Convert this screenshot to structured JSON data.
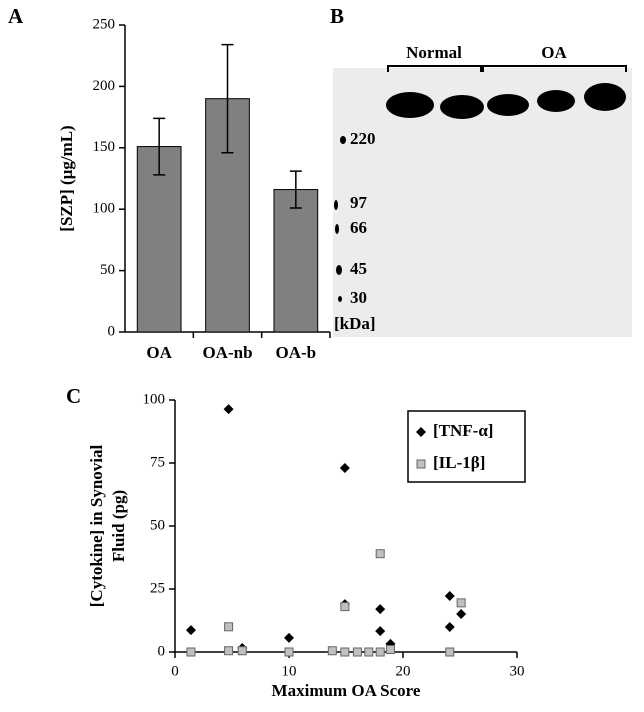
{
  "chart_data": [
    {
      "type": "bar",
      "label": "A",
      "y_label": "[SZP] (μg/mL)",
      "categories": [
        "OA",
        "OA-nb",
        "OA-b"
      ],
      "values": [
        151,
        190,
        116
      ],
      "errors": [
        23,
        44,
        15
      ],
      "color": "#808080",
      "ylim": [
        0,
        250
      ],
      "yticks": [
        0,
        50,
        100,
        150,
        200,
        250
      ]
    },
    {
      "type": "scatter",
      "label": "C",
      "x_label": "Maximum OA Score",
      "y_label": [
        "[Cytokine] in Synovial",
        "Fluid (pg)"
      ],
      "xlim": [
        0,
        30
      ],
      "xticks": [
        0,
        10,
        20,
        30
      ],
      "ylim": [
        0,
        100
      ],
      "yticks": [
        0,
        25,
        50,
        75,
        100
      ],
      "legend": "top-right",
      "series": [
        {
          "name": "[TNF-α]",
          "marker": "diamond",
          "color": "#000000",
          "x": [
            1.4,
            4.7,
            5.9,
            10,
            14.9,
            14.9,
            18,
            18,
            18.9,
            24.1,
            24.1,
            25.1
          ],
          "values": [
            8.7,
            96.4,
            1.6,
            5.6,
            73,
            19,
            17,
            8.3,
            3.2,
            22.2,
            9.9,
            15.1
          ]
        },
        {
          "name": "[IL-1β]",
          "marker": "square",
          "color": "#c0c0c0",
          "x": [
            1.4,
            4.7,
            4.7,
            5.9,
            10,
            13.8,
            14.9,
            14.9,
            16,
            17,
            18,
            18,
            18.9,
            24.1,
            25.1
          ],
          "values": [
            0,
            10,
            0.5,
            0.5,
            0,
            0.5,
            18,
            0,
            0,
            0,
            39,
            0,
            1,
            0,
            19.5
          ]
        }
      ]
    }
  ],
  "blot": {
    "label": "B",
    "groups": [
      "Normal",
      "OA"
    ],
    "markers": [
      220,
      97,
      66,
      45,
      30
    ],
    "unit": "[kDa]"
  }
}
